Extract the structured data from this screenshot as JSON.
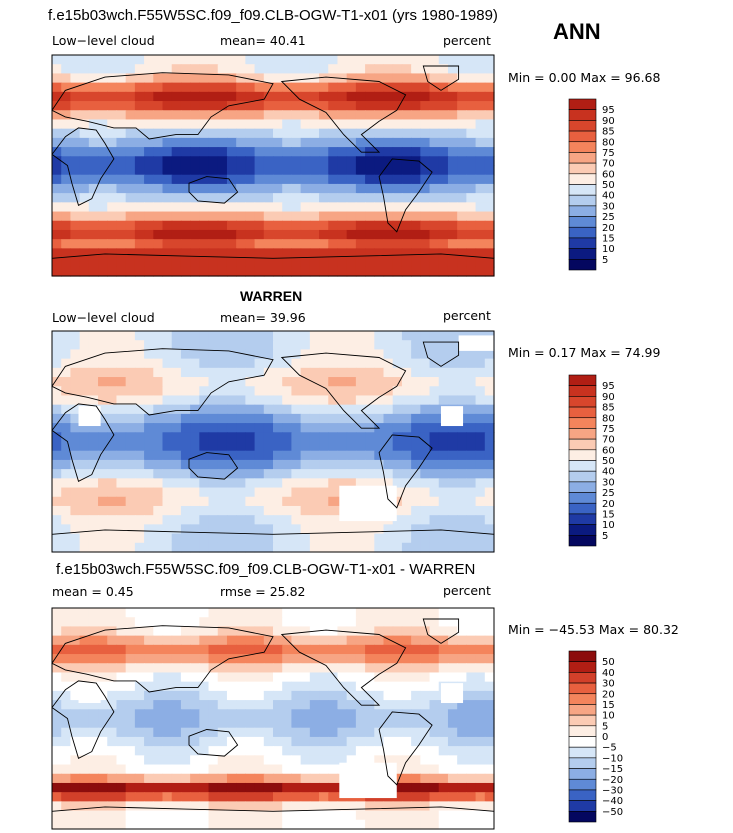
{
  "season": "ANN",
  "panels": [
    {
      "title": "f.e15b03wch.F55W5SC.f09_f09.CLB-OGW-T1-x01 (yrs 1980-1989)",
      "left_label": "Low−level cloud",
      "mid_label": "mean=  40.41",
      "right_label": "percent",
      "minmax": "Min =   0.00 Max =  96.68"
    },
    {
      "title": "WARREN",
      "left_label": "Low−level cloud",
      "mid_label": "mean=  39.96",
      "right_label": "percent",
      "minmax": "Min =   0.17 Max =  74.99"
    },
    {
      "title": "f.e15b03wch.F55W5SC.f09_f09.CLB-OGW-T1-x01 - WARREN",
      "left_label": "mean =   0.45",
      "mid_label": "rmse =  25.82",
      "right_label": "percent",
      "minmax": "Min = −45.53 Max =  80.32"
    }
  ],
  "chart_data": [
    {
      "type": "heatmap",
      "title": "f.e15b03wch.F55W5SC.f09_f09.CLB-OGW-T1-x01 (yrs 1980-1989)",
      "variable": "Low−level cloud",
      "units": "percent",
      "mean": 40.41,
      "min": 0.0,
      "max": 96.68,
      "colorbar_levels": [
        95,
        90,
        85,
        80,
        75,
        70,
        60,
        50,
        40,
        30,
        25,
        20,
        15,
        10,
        5
      ],
      "colorbar_colors": [
        "#b11e14",
        "#c8321f",
        "#d8462c",
        "#e8603f",
        "#f4845c",
        "#f7a584",
        "#fbcbb4",
        "#fdeee4",
        "#d6e6f7",
        "#b4cdee",
        "#8caee4",
        "#5f8ad6",
        "#3a63c4",
        "#1f3aa5",
        "#0b1a80",
        "#04075f"
      ]
    },
    {
      "type": "heatmap",
      "title": "WARREN",
      "variable": "Low−level cloud",
      "units": "percent",
      "mean": 39.96,
      "min": 0.17,
      "max": 74.99,
      "colorbar_levels": [
        95,
        90,
        85,
        80,
        75,
        70,
        60,
        50,
        40,
        30,
        25,
        20,
        15,
        10,
        5
      ],
      "colorbar_colors": [
        "#b11e14",
        "#c8321f",
        "#d8462c",
        "#e8603f",
        "#f4845c",
        "#f7a584",
        "#fbcbb4",
        "#fdeee4",
        "#d6e6f7",
        "#b4cdee",
        "#8caee4",
        "#5f8ad6",
        "#3a63c4",
        "#1f3aa5",
        "#0b1a80",
        "#04075f"
      ]
    },
    {
      "type": "heatmap",
      "title": "f.e15b03wch.F55W5SC.f09_f09.CLB-OGW-T1-x01 - WARREN",
      "units": "percent",
      "mean": 0.45,
      "rmse": 25.82,
      "min": -45.53,
      "max": 80.32,
      "colorbar_levels": [
        50,
        40,
        30,
        20,
        15,
        10,
        5,
        0,
        -5,
        -10,
        -15,
        -20,
        -30,
        -40,
        -50
      ],
      "colorbar_colors": [
        "#8c0d0d",
        "#b11e14",
        "#d2402a",
        "#e8603f",
        "#f4845c",
        "#f7a584",
        "#fbcbb4",
        "#fdeee4",
        "#ffffff",
        "#d6e6f7",
        "#b4cdee",
        "#8caee4",
        "#5f8ad6",
        "#3a63c4",
        "#1f3aa5",
        "#04075f"
      ]
    }
  ]
}
